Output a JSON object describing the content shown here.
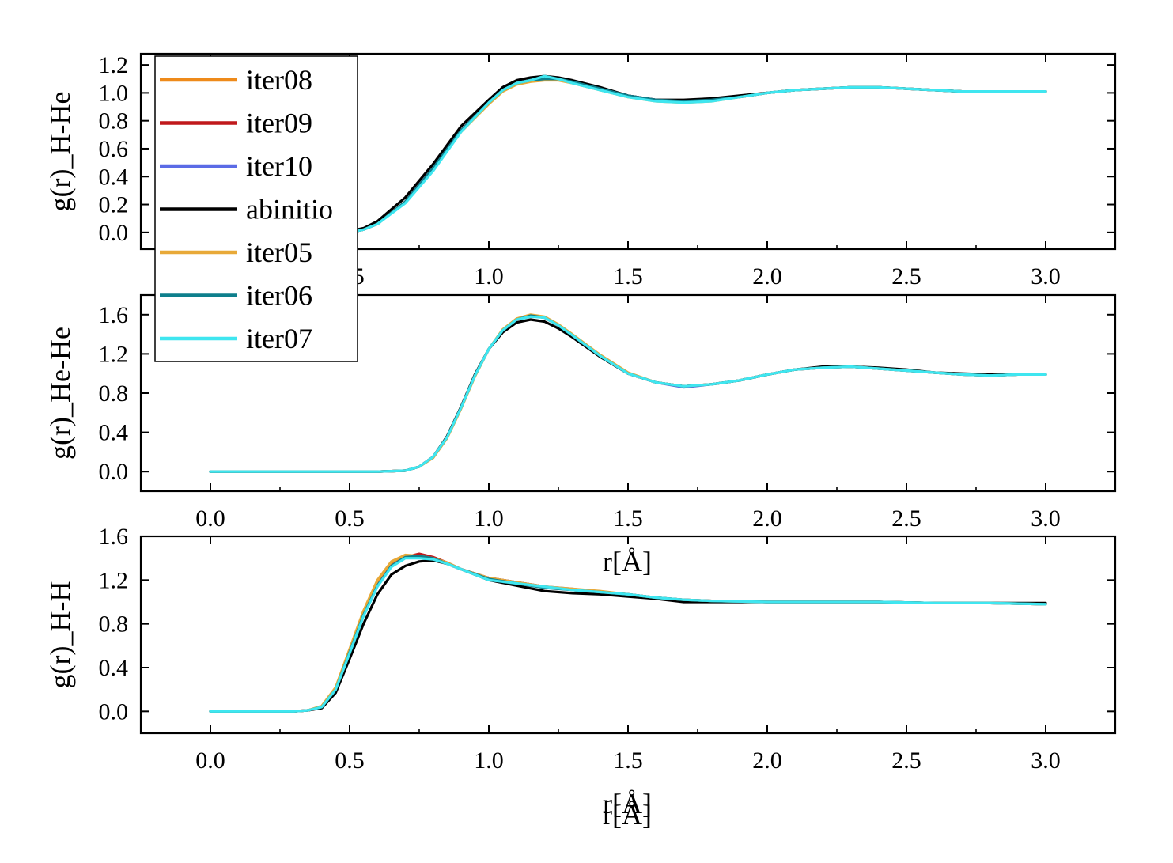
{
  "chart_data": [
    {
      "type": "line",
      "ylabel": "g(r)_H-He",
      "xlabel": "",
      "xlim": [
        -0.25,
        3.25
      ],
      "ylim": [
        -0.12,
        1.28
      ],
      "xticks": [
        "0.0",
        "0.5",
        "1.0",
        "1.5",
        "2.0",
        "2.5",
        "3.0"
      ],
      "yticks": [
        "0.0",
        "0.2",
        "0.4",
        "0.6",
        "0.8",
        "1.0",
        "1.2"
      ],
      "series_x": [
        0.45,
        0.5,
        0.55,
        0.6,
        0.7,
        0.8,
        0.9,
        1.0,
        1.05,
        1.1,
        1.15,
        1.2,
        1.25,
        1.3,
        1.4,
        1.5,
        1.6,
        1.7,
        1.8,
        1.9,
        2.0,
        2.1,
        2.2,
        2.3,
        2.4,
        2.5,
        2.6,
        2.7,
        2.8,
        2.9,
        3.0
      ],
      "series": [
        {
          "name": "iter08",
          "values": [
            0.0,
            0.0,
            0.02,
            0.06,
            0.22,
            0.46,
            0.73,
            0.93,
            1.02,
            1.07,
            1.09,
            1.1,
            1.1,
            1.08,
            1.03,
            0.98,
            0.95,
            0.94,
            0.95,
            0.97,
            1.0,
            1.02,
            1.03,
            1.04,
            1.04,
            1.03,
            1.02,
            1.01,
            1.01,
            1.01,
            1.01
          ]
        },
        {
          "name": "iter09",
          "values": [
            0.0,
            0.0,
            0.02,
            0.06,
            0.22,
            0.46,
            0.73,
            0.93,
            1.02,
            1.07,
            1.09,
            1.1,
            1.1,
            1.08,
            1.03,
            0.98,
            0.95,
            0.94,
            0.95,
            0.97,
            1.0,
            1.02,
            1.03,
            1.04,
            1.04,
            1.03,
            1.02,
            1.01,
            1.01,
            1.01,
            1.01
          ]
        },
        {
          "name": "iter10",
          "values": [
            0.0,
            0.0,
            0.02,
            0.06,
            0.22,
            0.46,
            0.73,
            0.93,
            1.02,
            1.07,
            1.09,
            1.1,
            1.1,
            1.08,
            1.03,
            0.98,
            0.95,
            0.94,
            0.95,
            0.97,
            1.0,
            1.02,
            1.03,
            1.04,
            1.04,
            1.03,
            1.02,
            1.01,
            1.01,
            1.01,
            1.01
          ]
        },
        {
          "name": "abinitio",
          "values": [
            0.0,
            0.01,
            0.03,
            0.08,
            0.25,
            0.49,
            0.76,
            0.95,
            1.04,
            1.09,
            1.11,
            1.12,
            1.11,
            1.09,
            1.04,
            0.98,
            0.95,
            0.95,
            0.96,
            0.98,
            1.0,
            1.02,
            1.03,
            1.04,
            1.04,
            1.03,
            1.02,
            1.01,
            1.01,
            1.01,
            1.01
          ]
        },
        {
          "name": "iter05",
          "values": [
            0.0,
            0.0,
            0.02,
            0.06,
            0.22,
            0.45,
            0.72,
            0.92,
            1.01,
            1.06,
            1.08,
            1.09,
            1.09,
            1.07,
            1.02,
            0.97,
            0.94,
            0.93,
            0.94,
            0.97,
            1.0,
            1.02,
            1.03,
            1.04,
            1.04,
            1.03,
            1.02,
            1.01,
            1.01,
            1.01,
            1.01
          ]
        },
        {
          "name": "iter06",
          "values": [
            0.0,
            0.0,
            0.02,
            0.06,
            0.22,
            0.46,
            0.73,
            0.93,
            1.02,
            1.07,
            1.09,
            1.1,
            1.1,
            1.08,
            1.03,
            0.98,
            0.95,
            0.94,
            0.95,
            0.97,
            1.0,
            1.02,
            1.03,
            1.04,
            1.04,
            1.03,
            1.02,
            1.01,
            1.01,
            1.01,
            1.01
          ]
        },
        {
          "name": "iter07",
          "values": [
            0.0,
            0.0,
            0.02,
            0.06,
            0.21,
            0.44,
            0.72,
            0.93,
            1.02,
            1.07,
            1.09,
            1.12,
            1.1,
            1.07,
            1.02,
            0.97,
            0.94,
            0.93,
            0.94,
            0.97,
            1.0,
            1.02,
            1.03,
            1.04,
            1.04,
            1.03,
            1.02,
            1.01,
            1.01,
            1.01,
            1.01
          ]
        }
      ]
    },
    {
      "type": "line",
      "ylabel": "g(r)_He-He",
      "xlabel": "r[Å]",
      "xlim": [
        -0.25,
        3.25
      ],
      "ylim": [
        -0.2,
        1.8
      ],
      "xticks": [
        "0.0",
        "0.5",
        "1.0",
        "1.5",
        "2.0",
        "2.5",
        "3.0"
      ],
      "yticks": [
        "0.0",
        "0.4",
        "0.8",
        "1.2",
        "1.6"
      ],
      "series_x": [
        0.0,
        0.3,
        0.6,
        0.7,
        0.75,
        0.8,
        0.85,
        0.9,
        0.95,
        1.0,
        1.05,
        1.1,
        1.15,
        1.2,
        1.25,
        1.3,
        1.4,
        1.5,
        1.6,
        1.7,
        1.8,
        1.9,
        2.0,
        2.1,
        2.2,
        2.3,
        2.4,
        2.5,
        2.6,
        2.7,
        2.8,
        2.9,
        3.0
      ],
      "series": [
        {
          "name": "iter08",
          "values": [
            0.0,
            0.0,
            0.0,
            0.01,
            0.05,
            0.15,
            0.35,
            0.65,
            0.98,
            1.25,
            1.44,
            1.55,
            1.59,
            1.57,
            1.49,
            1.39,
            1.18,
            1.0,
            0.91,
            0.87,
            0.89,
            0.93,
            0.99,
            1.04,
            1.06,
            1.07,
            1.05,
            1.03,
            1.01,
            0.99,
            0.98,
            0.99,
            0.99
          ]
        },
        {
          "name": "iter09",
          "values": [
            0.0,
            0.0,
            0.0,
            0.01,
            0.05,
            0.15,
            0.35,
            0.65,
            0.98,
            1.25,
            1.44,
            1.55,
            1.59,
            1.57,
            1.49,
            1.39,
            1.18,
            1.0,
            0.91,
            0.87,
            0.89,
            0.93,
            0.99,
            1.04,
            1.06,
            1.07,
            1.05,
            1.03,
            1.01,
            0.99,
            0.98,
            0.99,
            0.99
          ]
        },
        {
          "name": "iter10",
          "values": [
            0.0,
            0.0,
            0.0,
            0.01,
            0.05,
            0.15,
            0.35,
            0.65,
            0.98,
            1.25,
            1.44,
            1.55,
            1.59,
            1.57,
            1.49,
            1.39,
            1.18,
            1.0,
            0.91,
            0.86,
            0.89,
            0.93,
            0.99,
            1.04,
            1.06,
            1.07,
            1.05,
            1.03,
            1.01,
            0.99,
            0.98,
            0.99,
            0.99
          ]
        },
        {
          "name": "abinitio",
          "values": [
            0.0,
            0.0,
            0.0,
            0.01,
            0.05,
            0.15,
            0.36,
            0.66,
            0.99,
            1.25,
            1.42,
            1.52,
            1.55,
            1.53,
            1.46,
            1.37,
            1.17,
            1.0,
            0.91,
            0.87,
            0.89,
            0.93,
            0.99,
            1.04,
            1.07,
            1.07,
            1.06,
            1.04,
            1.01,
            1.0,
            0.99,
            0.99,
            0.99
          ]
        },
        {
          "name": "iter05",
          "values": [
            0.0,
            0.0,
            0.0,
            0.01,
            0.05,
            0.14,
            0.34,
            0.64,
            0.97,
            1.25,
            1.45,
            1.56,
            1.6,
            1.58,
            1.5,
            1.4,
            1.19,
            1.01,
            0.91,
            0.87,
            0.89,
            0.93,
            0.99,
            1.04,
            1.06,
            1.07,
            1.05,
            1.03,
            1.01,
            0.99,
            0.98,
            0.99,
            0.99
          ]
        },
        {
          "name": "iter06",
          "values": [
            0.0,
            0.0,
            0.0,
            0.01,
            0.05,
            0.15,
            0.35,
            0.65,
            0.98,
            1.25,
            1.44,
            1.55,
            1.59,
            1.57,
            1.49,
            1.39,
            1.18,
            1.0,
            0.91,
            0.87,
            0.89,
            0.93,
            0.99,
            1.04,
            1.06,
            1.07,
            1.05,
            1.03,
            1.01,
            0.99,
            0.98,
            0.99,
            0.99
          ]
        },
        {
          "name": "iter07",
          "values": [
            0.0,
            0.0,
            0.0,
            0.01,
            0.05,
            0.15,
            0.35,
            0.65,
            0.98,
            1.25,
            1.44,
            1.55,
            1.58,
            1.57,
            1.49,
            1.39,
            1.18,
            1.0,
            0.91,
            0.87,
            0.89,
            0.93,
            0.99,
            1.04,
            1.06,
            1.07,
            1.05,
            1.03,
            1.01,
            0.99,
            0.98,
            0.99,
            0.99
          ]
        }
      ]
    },
    {
      "type": "line",
      "ylabel": "g(r)_H-H",
      "xlabel": "r[Å]",
      "xlabel_bottom": "r[Å]",
      "xlim": [
        -0.25,
        3.25
      ],
      "ylim": [
        -0.2,
        1.6
      ],
      "xticks": [
        "0.0",
        "0.5",
        "1.0",
        "1.5",
        "2.0",
        "2.5",
        "3.0"
      ],
      "yticks": [
        "0.0",
        "0.4",
        "0.8",
        "1.2",
        "1.6"
      ],
      "series_x": [
        0.0,
        0.3,
        0.35,
        0.4,
        0.45,
        0.5,
        0.55,
        0.6,
        0.65,
        0.7,
        0.75,
        0.8,
        0.85,
        0.9,
        1.0,
        1.1,
        1.2,
        1.3,
        1.4,
        1.5,
        1.6,
        1.7,
        1.8,
        2.0,
        2.2,
        2.4,
        2.6,
        2.8,
        3.0
      ],
      "series": [
        {
          "name": "iter08",
          "values": [
            0.0,
            0.0,
            0.01,
            0.04,
            0.2,
            0.55,
            0.9,
            1.18,
            1.35,
            1.42,
            1.43,
            1.4,
            1.35,
            1.3,
            1.22,
            1.18,
            1.14,
            1.11,
            1.09,
            1.07,
            1.04,
            1.02,
            1.01,
            1.0,
            1.0,
            1.0,
            0.99,
            0.99,
            0.98
          ]
        },
        {
          "name": "iter09",
          "values": [
            0.0,
            0.0,
            0.01,
            0.04,
            0.2,
            0.54,
            0.88,
            1.15,
            1.33,
            1.41,
            1.44,
            1.41,
            1.36,
            1.3,
            1.22,
            1.18,
            1.14,
            1.11,
            1.09,
            1.07,
            1.04,
            1.02,
            1.01,
            1.0,
            1.0,
            1.0,
            0.99,
            0.99,
            0.98
          ]
        },
        {
          "name": "iter10",
          "values": [
            0.0,
            0.0,
            0.01,
            0.04,
            0.2,
            0.54,
            0.88,
            1.15,
            1.33,
            1.41,
            1.42,
            1.4,
            1.35,
            1.3,
            1.22,
            1.18,
            1.14,
            1.12,
            1.09,
            1.07,
            1.04,
            1.02,
            1.01,
            1.0,
            1.0,
            1.0,
            0.99,
            0.99,
            0.98
          ]
        },
        {
          "name": "abinitio",
          "values": [
            0.0,
            0.0,
            0.01,
            0.03,
            0.17,
            0.48,
            0.8,
            1.07,
            1.25,
            1.33,
            1.37,
            1.38,
            1.35,
            1.3,
            1.2,
            1.15,
            1.1,
            1.08,
            1.07,
            1.05,
            1.03,
            1.0,
            1.0,
            1.0,
            1.0,
            1.0,
            0.99,
            0.99,
            0.99
          ]
        },
        {
          "name": "iter05",
          "values": [
            0.0,
            0.0,
            0.01,
            0.05,
            0.22,
            0.57,
            0.92,
            1.2,
            1.37,
            1.43,
            1.42,
            1.4,
            1.36,
            1.3,
            1.22,
            1.18,
            1.14,
            1.12,
            1.1,
            1.07,
            1.04,
            1.02,
            1.01,
            1.0,
            1.0,
            1.0,
            0.99,
            0.99,
            0.98
          ]
        },
        {
          "name": "iter06",
          "values": [
            0.0,
            0.0,
            0.01,
            0.04,
            0.2,
            0.54,
            0.88,
            1.15,
            1.33,
            1.41,
            1.42,
            1.4,
            1.35,
            1.3,
            1.21,
            1.17,
            1.13,
            1.11,
            1.09,
            1.07,
            1.04,
            1.02,
            1.01,
            1.0,
            1.0,
            1.0,
            0.99,
            0.99,
            0.98
          ]
        },
        {
          "name": "iter07",
          "values": [
            0.0,
            0.0,
            0.01,
            0.04,
            0.2,
            0.53,
            0.87,
            1.14,
            1.32,
            1.4,
            1.4,
            1.39,
            1.35,
            1.3,
            1.2,
            1.17,
            1.14,
            1.11,
            1.09,
            1.07,
            1.04,
            1.02,
            1.01,
            1.0,
            1.0,
            1.0,
            0.99,
            0.99,
            0.98
          ]
        }
      ]
    }
  ],
  "legend": {
    "placement": "upper-left",
    "entries": [
      {
        "name": "iter08",
        "color": "#EE8A1A"
      },
      {
        "name": "iter09",
        "color": "#C0191C"
      },
      {
        "name": "iter10",
        "color": "#5B6BE6"
      },
      {
        "name": "abinitio",
        "color": "#000000"
      },
      {
        "name": "iter05",
        "color": "#E8A938"
      },
      {
        "name": "iter06",
        "color": "#0E7F8C"
      },
      {
        "name": "iter07",
        "color": "#3FE6F0"
      }
    ]
  }
}
